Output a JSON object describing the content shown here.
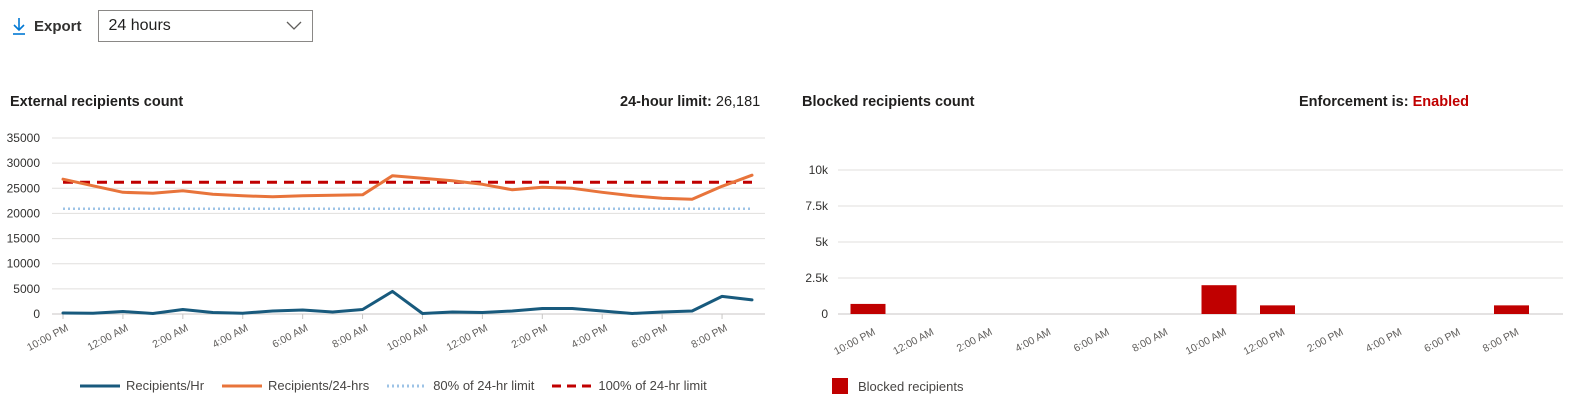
{
  "toolbar": {
    "export_label": "Export",
    "range_value": "24 hours"
  },
  "left_panel": {
    "title": "External recipients count",
    "limit_label": "24-hour limit:",
    "limit_value": "26,181"
  },
  "right_panel": {
    "title": "Blocked recipients count",
    "enforcement_label": "Enforcement is:",
    "enforcement_value": "Enabled"
  },
  "colors": {
    "recipients_hr": "#185a7d",
    "recipients_24": "#e8743b",
    "limit80": "#9dc3e6",
    "limit100": "#c00000",
    "blocked": "#c00000",
    "enabled_text": "#c00000"
  },
  "chart_data": [
    {
      "type": "line",
      "title": "External recipients count",
      "x": [
        "10:00 PM",
        "11:00 PM",
        "12:00 AM",
        "1:00 AM",
        "2:00 AM",
        "3:00 AM",
        "4:00 AM",
        "5:00 AM",
        "6:00 AM",
        "7:00 AM",
        "8:00 AM",
        "9:00 AM",
        "10:00 AM",
        "11:00 AM",
        "12:00 PM",
        "1:00 PM",
        "2:00 PM",
        "3:00 PM",
        "4:00 PM",
        "5:00 PM",
        "6:00 PM",
        "7:00 PM",
        "8:00 PM",
        "9:00 PM"
      ],
      "x_tick_labels": [
        "10:00 PM",
        "12:00 AM",
        "2:00 AM",
        "4:00 AM",
        "6:00 AM",
        "8:00 AM",
        "10:00 AM",
        "12:00 PM",
        "2:00 PM",
        "4:00 PM",
        "6:00 PM",
        "8:00 PM"
      ],
      "y_ticks": [
        "0",
        "5000",
        "10000",
        "15000",
        "20000",
        "25000",
        "30000",
        "35000"
      ],
      "ylim": [
        0,
        35000
      ],
      "grid": true,
      "legend_position": "bottom",
      "series": [
        {
          "name": "Recipients/Hr",
          "style": "solid",
          "values": [
            200,
            150,
            500,
            100,
            900,
            300,
            150,
            600,
            800,
            400,
            900,
            4500,
            100,
            400,
            300,
            600,
            1100,
            1100,
            600,
            100,
            400,
            600,
            3500,
            2800
          ]
        },
        {
          "name": "Recipients/24-hrs",
          "style": "solid",
          "values": [
            26800,
            25500,
            24200,
            24000,
            24500,
            23800,
            23500,
            23300,
            23500,
            23600,
            23700,
            27500,
            27000,
            26500,
            25800,
            24700,
            25200,
            25000,
            24200,
            23500,
            23000,
            22800,
            25400,
            27600
          ]
        },
        {
          "name": "80% of 24-hr limit",
          "style": "dotted",
          "values": [
            20945,
            20945,
            20945,
            20945,
            20945,
            20945,
            20945,
            20945,
            20945,
            20945,
            20945,
            20945,
            20945,
            20945,
            20945,
            20945,
            20945,
            20945,
            20945,
            20945,
            20945,
            20945,
            20945,
            20945
          ]
        },
        {
          "name": "100% of 24-hr limit",
          "style": "dashed",
          "values": [
            26181,
            26181,
            26181,
            26181,
            26181,
            26181,
            26181,
            26181,
            26181,
            26181,
            26181,
            26181,
            26181,
            26181,
            26181,
            26181,
            26181,
            26181,
            26181,
            26181,
            26181,
            26181,
            26181,
            26181
          ]
        }
      ]
    },
    {
      "type": "bar",
      "title": "Blocked recipients count",
      "x_tick_labels": [
        "10:00 PM",
        "12:00 AM",
        "2:00 AM",
        "4:00 AM",
        "6:00 AM",
        "8:00 AM",
        "10:00 AM",
        "12:00 PM",
        "2:00 PM",
        "4:00 PM",
        "6:00 PM",
        "8:00 PM"
      ],
      "y_ticks": [
        "0",
        "2.5k",
        "5k",
        "7.5k",
        "10k"
      ],
      "ylim": [
        0,
        10000
      ],
      "grid": true,
      "legend_position": "bottom-left",
      "series": [
        {
          "name": "Blocked recipients",
          "values": [
            {
              "x": "10:00 PM",
              "y": 700
            },
            {
              "x": "10:00 AM",
              "y": 2000
            },
            {
              "x": "12:00 PM",
              "y": 600
            },
            {
              "x": "8:00 PM",
              "y": 600
            }
          ]
        }
      ]
    }
  ]
}
